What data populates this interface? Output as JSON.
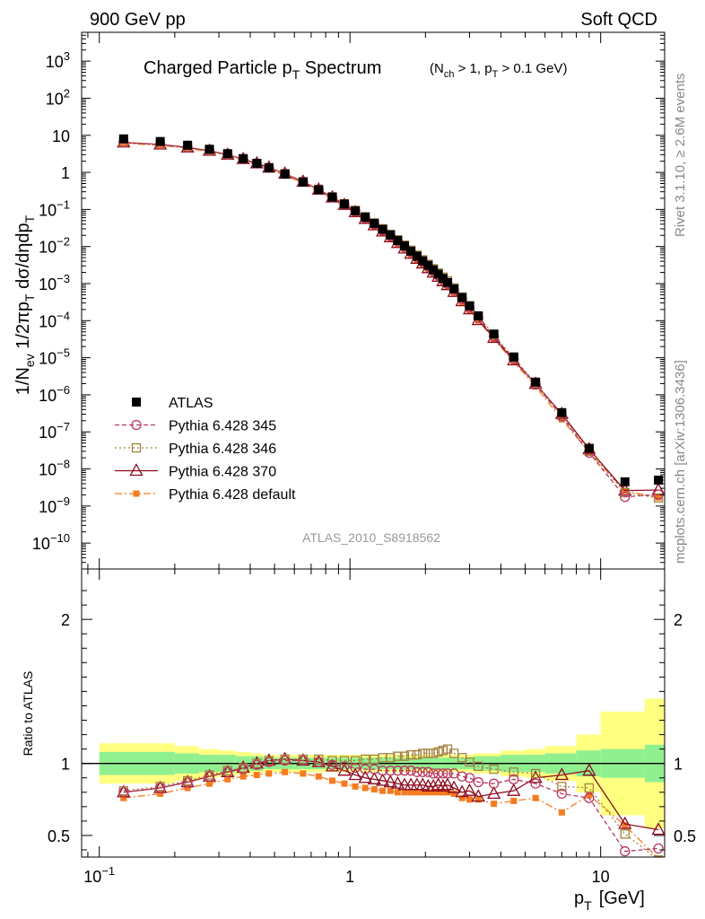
{
  "header": {
    "left": "900 GeV pp",
    "right": "Soft QCD"
  },
  "side_labels": {
    "rivet": "Rivet 3.1.10, ≥ 2.6M events",
    "source": "mcplots.cern.ch [arXiv:1306.3436]"
  },
  "chart_data": [
    {
      "panel": "main",
      "type": "line",
      "title": "Charged Particle p_T Spectrum",
      "title_main": "Charged Particle p",
      "title_sub": "T",
      "title_tail": " Spectrum",
      "cuts": "(N_ch > 1, p_T > 0.1 GeV)",
      "cuts_parts": [
        "(N",
        "ch",
        " > 1, p",
        "T",
        " > 0.1 GeV)"
      ],
      "ylabel": "1/N_ev 1/2πp_T dσ/dηdp_T",
      "ylabel_parts": [
        "1/N",
        "ev",
        " 1/2πp",
        "T",
        " dσ/dηdp",
        "T"
      ],
      "xscale": "log",
      "yscale": "log",
      "xlim": [
        0.085,
        18
      ],
      "ylim": [
        2e-11,
        6000
      ],
      "y_ticks": [
        {
          "mant": "10",
          "exp": "3"
        },
        {
          "mant": "10",
          "exp": "2"
        },
        {
          "mant": "10",
          "exp": ""
        },
        {
          "mant": "1",
          "exp": ""
        },
        {
          "mant": "10",
          "exp": "−1"
        },
        {
          "mant": "10",
          "exp": "−2"
        },
        {
          "mant": "10",
          "exp": "−3"
        },
        {
          "mant": "10",
          "exp": "−4"
        },
        {
          "mant": "10",
          "exp": "−5"
        },
        {
          "mant": "10",
          "exp": "−6"
        },
        {
          "mant": "10",
          "exp": "−7"
        },
        {
          "mant": "10",
          "exp": "−8"
        },
        {
          "mant": "10",
          "exp": "−9"
        },
        {
          "mant": "10",
          "exp": "−10"
        }
      ],
      "watermark": "ATLAS_2010_S8918562",
      "x": [
        0.125,
        0.175,
        0.225,
        0.275,
        0.325,
        0.375,
        0.425,
        0.475,
        0.55,
        0.65,
        0.75,
        0.85,
        0.95,
        1.05,
        1.15,
        1.25,
        1.35,
        1.45,
        1.55,
        1.65,
        1.75,
        1.85,
        1.95,
        2.05,
        2.15,
        2.25,
        2.35,
        2.45,
        2.6,
        2.8,
        3.0,
        3.25,
        3.75,
        4.5,
        5.5,
        7.0,
        9.0,
        12.5,
        17.0
      ],
      "atlas": [
        8.0,
        6.8,
        5.4,
        4.2,
        3.2,
        2.35,
        1.75,
        1.32,
        0.9,
        0.55,
        0.34,
        0.215,
        0.14,
        0.092,
        0.062,
        0.042,
        0.029,
        0.0205,
        0.0145,
        0.0104,
        0.0075,
        0.0055,
        0.0041,
        0.0031,
        0.00235,
        0.0018,
        0.00138,
        0.00107,
        0.00072,
        0.00042,
        0.00025,
        0.000135,
        4.35e-05,
        1.05e-05,
        2.2e-06,
        3.3e-07,
        3.6e-08,
        4.5e-09,
        5e-09
      ],
      "legend": [
        {
          "key": "atlas",
          "label": "ATLAS"
        },
        {
          "key": "p345",
          "label": "Pythia 6.428 345"
        },
        {
          "key": "p346",
          "label": "Pythia 6.428 346"
        },
        {
          "key": "p370",
          "label": "Pythia 6.428 370"
        },
        {
          "key": "pdef",
          "label": "Pythia 6.428 default"
        }
      ]
    },
    {
      "panel": "ratio",
      "type": "line",
      "ylabel": "Ratio to ATLAS",
      "xlabel": "p_T [GeV]",
      "xlabel_parts": [
        "p",
        "T",
        "[GeV]"
      ],
      "ylim": [
        0.35,
        2.35
      ],
      "y_ticks": [
        {
          "v": 0.5,
          "label": "0.5"
        },
        {
          "v": 1,
          "label": "1"
        },
        {
          "v": 2,
          "label": "2"
        }
      ],
      "x_ticks": [
        {
          "v": 0.1,
          "mant": "10",
          "exp": "−1"
        },
        {
          "v": 1,
          "mant": "1",
          "exp": ""
        },
        {
          "v": 10,
          "mant": "10",
          "exp": ""
        }
      ],
      "bands": {
        "edges": [
          0.1,
          0.15,
          0.2,
          0.25,
          0.3,
          0.35,
          0.4,
          0.45,
          0.5,
          0.6,
          0.7,
          0.8,
          0.9,
          1.0,
          1.1,
          1.2,
          1.3,
          1.4,
          1.5,
          1.6,
          1.7,
          1.8,
          1.9,
          2.0,
          2.1,
          2.2,
          2.3,
          2.4,
          2.5,
          2.7,
          2.9,
          3.1,
          3.5,
          4.0,
          5.0,
          6.0,
          8.0,
          10.0,
          15.0,
          20.0
        ],
        "stat": [
          0.08,
          0.08,
          0.07,
          0.06,
          0.06,
          0.05,
          0.05,
          0.04,
          0.04,
          0.04,
          0.04,
          0.04,
          0.04,
          0.04,
          0.04,
          0.04,
          0.04,
          0.04,
          0.04,
          0.04,
          0.04,
          0.04,
          0.04,
          0.04,
          0.04,
          0.04,
          0.04,
          0.04,
          0.04,
          0.04,
          0.04,
          0.05,
          0.05,
          0.06,
          0.06,
          0.07,
          0.09,
          0.1,
          0.13
        ],
        "total": [
          0.14,
          0.14,
          0.12,
          0.1,
          0.09,
          0.08,
          0.07,
          0.06,
          0.06,
          0.06,
          0.06,
          0.06,
          0.06,
          0.06,
          0.06,
          0.06,
          0.06,
          0.06,
          0.06,
          0.06,
          0.06,
          0.06,
          0.06,
          0.06,
          0.06,
          0.06,
          0.06,
          0.06,
          0.06,
          0.06,
          0.06,
          0.07,
          0.07,
          0.09,
          0.1,
          0.12,
          0.2,
          0.36,
          0.45
        ]
      },
      "series": [
        {
          "name": "Pythia 6.428 345",
          "key": "p345",
          "color": "#b9375e",
          "values": [
            0.8,
            0.83,
            0.87,
            0.91,
            0.94,
            0.96,
            0.99,
            1.01,
            1.02,
            1.02,
            1.01,
            0.99,
            0.98,
            0.97,
            0.96,
            0.96,
            0.95,
            0.95,
            0.95,
            0.95,
            0.95,
            0.94,
            0.94,
            0.94,
            0.93,
            0.93,
            0.93,
            0.93,
            0.93,
            0.91,
            0.9,
            0.87,
            0.86,
            0.89,
            0.86,
            0.79,
            0.76,
            0.39,
            0.41
          ]
        },
        {
          "name": "Pythia 6.428 346",
          "key": "p346",
          "color": "#a3813e",
          "values": [
            0.81,
            0.84,
            0.88,
            0.92,
            0.95,
            0.97,
            1.0,
            1.02,
            1.03,
            1.03,
            1.03,
            1.02,
            1.02,
            1.02,
            1.03,
            1.03,
            1.04,
            1.04,
            1.05,
            1.05,
            1.06,
            1.06,
            1.07,
            1.07,
            1.07,
            1.08,
            1.09,
            1.1,
            1.07,
            1.04,
            1.01,
            0.98,
            0.96,
            0.94,
            0.93,
            0.84,
            0.83,
            0.51,
            0.33
          ]
        },
        {
          "name": "Pythia 6.428 370",
          "key": "p370",
          "color": "#8b0a1e",
          "values": [
            0.8,
            0.83,
            0.87,
            0.91,
            0.94,
            0.97,
            1.0,
            1.02,
            1.03,
            1.02,
            1.01,
            0.98,
            0.95,
            0.92,
            0.9,
            0.89,
            0.88,
            0.87,
            0.86,
            0.85,
            0.85,
            0.85,
            0.85,
            0.84,
            0.84,
            0.85,
            0.84,
            0.85,
            0.83,
            0.8,
            0.81,
            0.77,
            0.79,
            0.81,
            0.9,
            0.92,
            0.95,
            0.58,
            0.54
          ]
        },
        {
          "name": "Pythia 6.428 default",
          "key": "pdef",
          "color": "#f47b20",
          "values": [
            0.76,
            0.79,
            0.83,
            0.86,
            0.89,
            0.91,
            0.92,
            0.93,
            0.94,
            0.93,
            0.91,
            0.88,
            0.86,
            0.84,
            0.83,
            0.82,
            0.81,
            0.81,
            0.8,
            0.8,
            0.8,
            0.8,
            0.8,
            0.8,
            0.8,
            0.8,
            0.8,
            0.8,
            0.79,
            0.76,
            0.75,
            0.75,
            0.72,
            0.74,
            0.76,
            0.66,
            0.78,
            0.57,
            0.34
          ]
        }
      ]
    }
  ]
}
